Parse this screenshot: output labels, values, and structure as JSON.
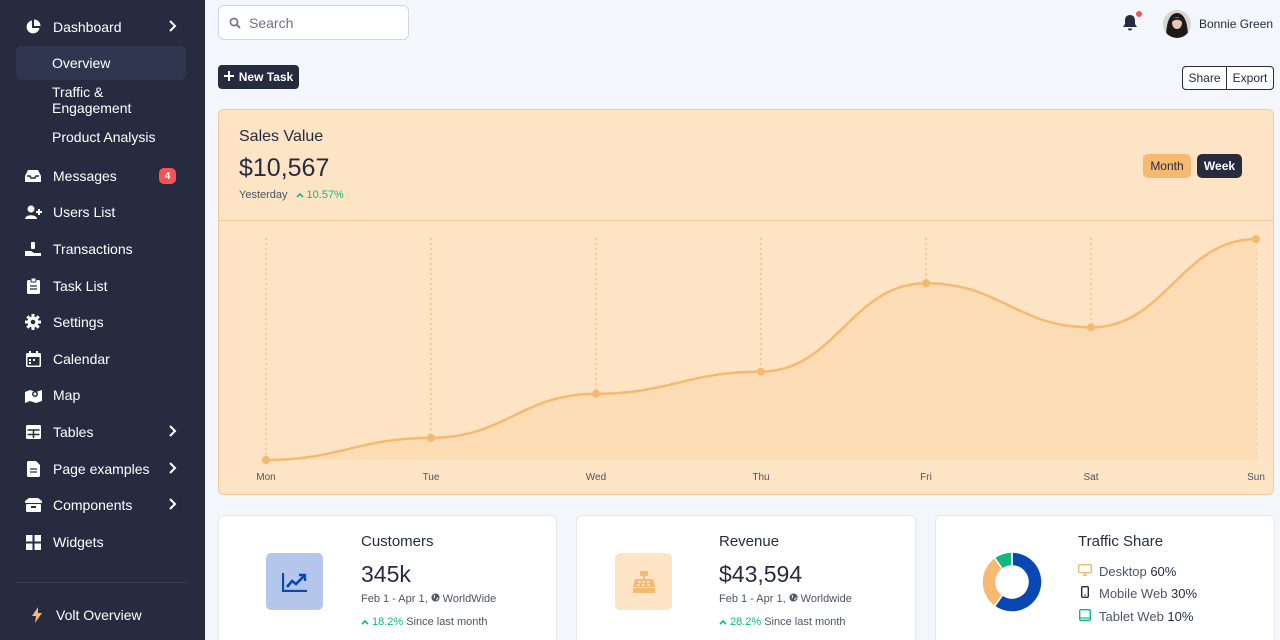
{
  "sidebar": {
    "items": [
      {
        "label": "Dashboard",
        "icon": "pie-chart-icon"
      },
      {
        "label": "Overview"
      },
      {
        "label": "Traffic & Engagement"
      },
      {
        "label": "Product Analysis"
      },
      {
        "label": "Messages",
        "icon": "inbox-icon",
        "badge": "4"
      },
      {
        "label": "Users List",
        "icon": "user-add-icon"
      },
      {
        "label": "Transactions",
        "icon": "hand-coin-icon"
      },
      {
        "label": "Task List",
        "icon": "clipboard-icon"
      },
      {
        "label": "Settings",
        "icon": "gear-icon"
      },
      {
        "label": "Calendar",
        "icon": "calendar-icon"
      },
      {
        "label": "Map",
        "icon": "map-icon"
      },
      {
        "label": "Tables",
        "icon": "table-icon"
      },
      {
        "label": "Page examples",
        "icon": "document-icon"
      },
      {
        "label": "Components",
        "icon": "archive-icon"
      },
      {
        "label": "Widgets",
        "icon": "grid-icon"
      }
    ],
    "footer": {
      "label": "Volt Overview",
      "icon": "lightning-icon"
    }
  },
  "header": {
    "search_placeholder": "Search",
    "user_name": "Bonnie Green"
  },
  "toolbar": {
    "new_task_label": "New Task",
    "share_label": "Share",
    "export_label": "Export"
  },
  "sales": {
    "title": "Sales Value",
    "value": "$10,567",
    "period": "Yesterday",
    "change": "10.57%",
    "toggle_month": "Month",
    "toggle_week": "Week"
  },
  "chart_data": {
    "type": "area",
    "categories": [
      "Mon",
      "Tue",
      "Wed",
      "Thu",
      "Fri",
      "Sat",
      "Sun"
    ],
    "values": [
      0,
      10,
      30,
      40,
      80,
      60,
      100
    ],
    "ylim": [
      0,
      100
    ],
    "grid": "vertical dotted",
    "colors": {
      "line": "#f5b971",
      "fill": "#fcdcb4",
      "grid": "#f5b971"
    }
  },
  "stats": {
    "customers": {
      "title": "Customers",
      "value": "345k",
      "period": "Feb 1 - Apr 1,",
      "region": "WorldWide",
      "change": "18.2%",
      "change_text": "Since last month",
      "icon": "chart-up-icon"
    },
    "revenue": {
      "title": "Revenue",
      "value": "$43,594",
      "period": "Feb 1 - Apr 1,",
      "region": "Worldwide",
      "change": "28.2%",
      "change_text": "Since last month",
      "icon": "cash-register-icon"
    },
    "traffic": {
      "title": "Traffic Share",
      "rows": [
        {
          "label": "Desktop",
          "value": "60%",
          "icon": "desktop-icon"
        },
        {
          "label": "Mobile Web",
          "value": "30%",
          "icon": "mobile-icon"
        },
        {
          "label": "Tablet Web",
          "value": "10%",
          "icon": "tablet-icon"
        }
      ],
      "colors": [
        "#0948b3",
        "#f5b971",
        "#10b981"
      ]
    }
  }
}
